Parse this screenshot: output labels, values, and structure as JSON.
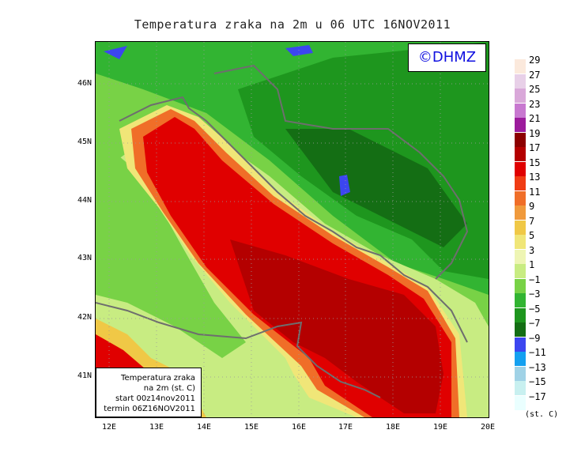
{
  "title": "Temperatura zraka na 2m u 06 UTC 16NOV2011",
  "logo": "©DHMZ",
  "info_box": {
    "line1": "Temperatura zraka",
    "line2": "na 2m (st. C)",
    "line3": "start 00z14nov2011",
    "line4": "termin 06Z16NOV2011"
  },
  "lat_labels": [
    "46N",
    "45N",
    "44N",
    "43N",
    "42N",
    "41N"
  ],
  "lon_labels": [
    "12E",
    "13E",
    "14E",
    "15E",
    "16E",
    "17E",
    "18E",
    "19E",
    "20E"
  ],
  "legend": {
    "units": "(st. C)",
    "entries": [
      {
        "label": "29",
        "color": "#fbe9dc"
      },
      {
        "label": "27",
        "color": "#e8d0e8"
      },
      {
        "label": "25",
        "color": "#d9a8d9"
      },
      {
        "label": "23",
        "color": "#c878d0"
      },
      {
        "label": "21",
        "color": "#9c1c9c"
      },
      {
        "label": "19",
        "color": "#8c0000"
      },
      {
        "label": "17",
        "color": "#b40000"
      },
      {
        "label": "15",
        "color": "#e00000"
      },
      {
        "label": "13",
        "color": "#f03c14"
      },
      {
        "label": "11",
        "color": "#f06e28"
      },
      {
        "label": "9",
        "color": "#f09a3c"
      },
      {
        "label": "7",
        "color": "#f0c846"
      },
      {
        "label": "5",
        "color": "#f0e678"
      },
      {
        "label": "3",
        "color": "#eef5b4"
      },
      {
        "label": "1",
        "color": "#c8ec82"
      },
      {
        "label": "−1",
        "color": "#78d246"
      },
      {
        "label": "−3",
        "color": "#32b432"
      },
      {
        "label": "−5",
        "color": "#1e961e"
      },
      {
        "label": "−7",
        "color": "#146e14"
      },
      {
        "label": "−9",
        "color": "#3c46f0"
      },
      {
        "label": "−11",
        "color": "#14a0f0"
      },
      {
        "label": "−13",
        "color": "#a0d2e6"
      },
      {
        "label": "−15",
        "color": "#c8f0f0"
      },
      {
        "label": "−17",
        "color": "#eaffff"
      }
    ]
  }
}
